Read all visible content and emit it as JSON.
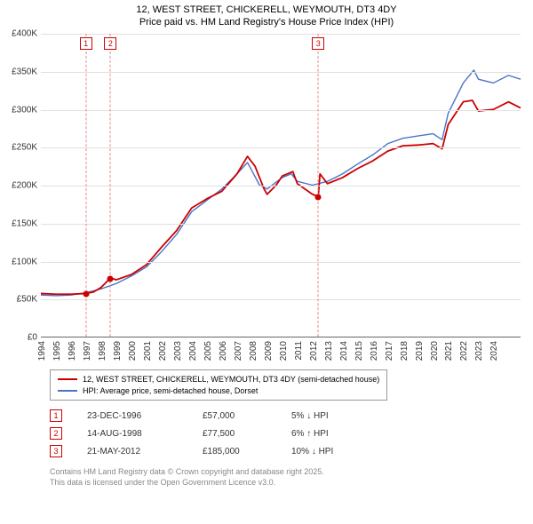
{
  "title_line1": "12, WEST STREET, CHICKERELL, WEYMOUTH, DT3 4DY",
  "title_line2": "Price paid vs. HM Land Registry's House Price Index (HPI)",
  "chart": {
    "type": "line",
    "x_min": 1994,
    "x_max": 2025.8,
    "y_min": 0,
    "y_max": 400000,
    "y_tick_step": 50000,
    "x_ticks": [
      1994,
      1995,
      1996,
      1997,
      1998,
      1999,
      2000,
      2001,
      2002,
      2003,
      2004,
      2005,
      2006,
      2007,
      2008,
      2009,
      2010,
      2011,
      2012,
      2013,
      2014,
      2015,
      2016,
      2017,
      2018,
      2019,
      2020,
      2021,
      2022,
      2023,
      2024
    ],
    "grid_color": "#e0e0e0",
    "background_color": "#ffffff",
    "axis_color": "#666666",
    "series": [
      {
        "name": "hpi",
        "color": "#4a74c9",
        "width": 1.4,
        "points": [
          [
            1994,
            55000
          ],
          [
            1995,
            54000
          ],
          [
            1996,
            55000
          ],
          [
            1997,
            58000
          ],
          [
            1998,
            63000
          ],
          [
            1999,
            70000
          ],
          [
            2000,
            80000
          ],
          [
            2001,
            92000
          ],
          [
            2002,
            112000
          ],
          [
            2003,
            135000
          ],
          [
            2004,
            165000
          ],
          [
            2005,
            180000
          ],
          [
            2006,
            195000
          ],
          [
            2007,
            215000
          ],
          [
            2007.7,
            230000
          ],
          [
            2008.5,
            200000
          ],
          [
            2009,
            195000
          ],
          [
            2010,
            210000
          ],
          [
            2010.6,
            215000
          ],
          [
            2011,
            205000
          ],
          [
            2012,
            200000
          ],
          [
            2013,
            205000
          ],
          [
            2014,
            215000
          ],
          [
            2015,
            228000
          ],
          [
            2016,
            240000
          ],
          [
            2017,
            255000
          ],
          [
            2018,
            262000
          ],
          [
            2019,
            265000
          ],
          [
            2020,
            268000
          ],
          [
            2020.6,
            260000
          ],
          [
            2021,
            295000
          ],
          [
            2022,
            335000
          ],
          [
            2022.7,
            352000
          ],
          [
            2023,
            340000
          ],
          [
            2024,
            335000
          ],
          [
            2025,
            345000
          ],
          [
            2025.8,
            340000
          ]
        ]
      },
      {
        "name": "price_paid",
        "color": "#cc0000",
        "width": 1.8,
        "points": [
          [
            1994,
            57000
          ],
          [
            1995,
            56000
          ],
          [
            1996,
            56000
          ],
          [
            1996.98,
            57000
          ],
          [
            1997.5,
            59000
          ],
          [
            1998,
            65000
          ],
          [
            1998.62,
            77500
          ],
          [
            1999,
            75000
          ],
          [
            2000,
            82000
          ],
          [
            2001,
            95000
          ],
          [
            2002,
            118000
          ],
          [
            2003,
            140000
          ],
          [
            2004,
            170000
          ],
          [
            2005,
            182000
          ],
          [
            2006,
            192000
          ],
          [
            2007,
            215000
          ],
          [
            2007.7,
            238000
          ],
          [
            2008.2,
            225000
          ],
          [
            2008.8,
            195000
          ],
          [
            2009,
            188000
          ],
          [
            2009.6,
            200000
          ],
          [
            2010,
            212000
          ],
          [
            2010.7,
            218000
          ],
          [
            2011,
            202000
          ],
          [
            2011.5,
            195000
          ],
          [
            2012,
            188000
          ],
          [
            2012.39,
            185000
          ],
          [
            2012.5,
            215000
          ],
          [
            2013,
            202000
          ],
          [
            2014,
            210000
          ],
          [
            2015,
            222000
          ],
          [
            2016,
            232000
          ],
          [
            2017,
            245000
          ],
          [
            2018,
            252000
          ],
          [
            2019,
            253000
          ],
          [
            2020,
            255000
          ],
          [
            2020.6,
            248000
          ],
          [
            2021,
            280000
          ],
          [
            2022,
            310000
          ],
          [
            2022.6,
            312000
          ],
          [
            2023,
            298000
          ],
          [
            2024,
            300000
          ],
          [
            2025,
            310000
          ],
          [
            2025.8,
            302000
          ]
        ]
      }
    ],
    "sale_markers": [
      {
        "num": "1",
        "x": 1996.98,
        "y": 57000,
        "color": "#cc0000"
      },
      {
        "num": "2",
        "x": 1998.62,
        "y": 77500,
        "color": "#cc0000"
      },
      {
        "num": "3",
        "x": 2012.39,
        "y": 185000,
        "color": "#cc0000"
      }
    ]
  },
  "legend": {
    "items": [
      {
        "color": "#cc0000",
        "width": 2,
        "label": "12, WEST STREET, CHICKERELL, WEYMOUTH, DT3 4DY (semi-detached house)"
      },
      {
        "color": "#4a74c9",
        "width": 1.4,
        "label": "HPI: Average price, semi-detached house, Dorset"
      }
    ]
  },
  "transactions": [
    {
      "num": "1",
      "date": "23-DEC-1996",
      "price": "£57,000",
      "delta": "5% ↓ HPI"
    },
    {
      "num": "2",
      "date": "14-AUG-1998",
      "price": "£77,500",
      "delta": "6% ↑ HPI"
    },
    {
      "num": "3",
      "date": "21-MAY-2012",
      "price": "£185,000",
      "delta": "10% ↓ HPI"
    }
  ],
  "footer_line1": "Contains HM Land Registry data © Crown copyright and database right 2025.",
  "footer_line2": "This data is licensed under the Open Government Licence v3.0.",
  "y_label_prefix": "£"
}
